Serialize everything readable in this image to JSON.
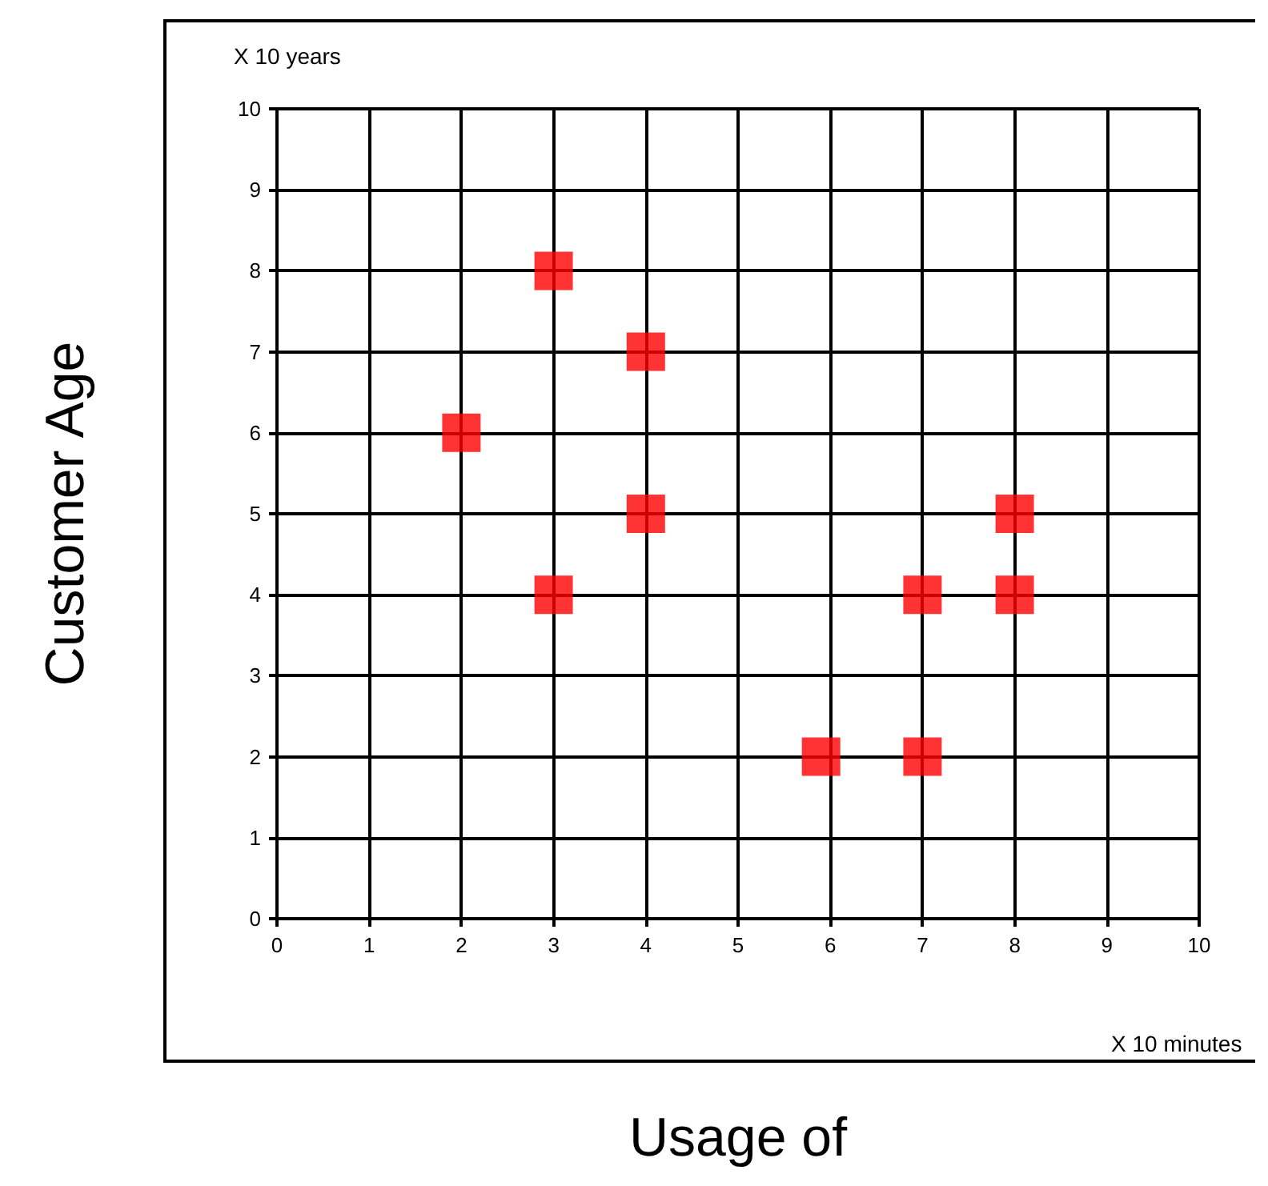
{
  "chart_data": {
    "type": "scatter",
    "xlabel": "Usage of",
    "ylabel": "Customer Age",
    "annotations": [
      "X 10 years",
      "X 10 minutes"
    ],
    "x": [
      2,
      3,
      3,
      4,
      4,
      5.9,
      7,
      7,
      8,
      8
    ],
    "values": [
      6,
      8,
      4,
      7,
      5,
      2,
      4,
      2,
      5,
      4
    ],
    "color": "#ff0000",
    "marker": "square",
    "grid": true,
    "xlim": [
      0,
      10
    ],
    "ylim": [
      0,
      10
    ],
    "xticks": [
      0,
      1,
      2,
      3,
      4,
      5,
      6,
      7,
      8,
      9,
      10
    ],
    "yticks": [
      0,
      1,
      2,
      3,
      4,
      5,
      6,
      7,
      8,
      9,
      10
    ]
  }
}
